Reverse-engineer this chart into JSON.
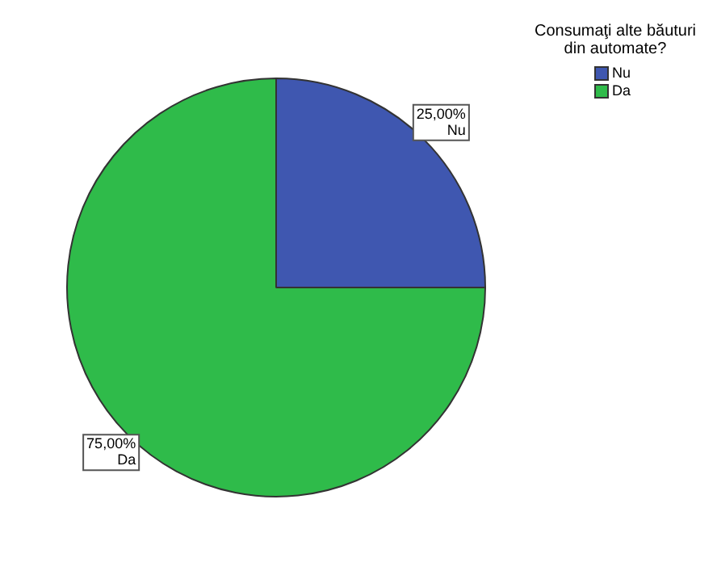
{
  "chart_data": {
    "type": "pie",
    "legend_title": "Consumaţi alte băuturi din automate?",
    "categories": [
      "Nu",
      "Da"
    ],
    "values": [
      25,
      75
    ],
    "value_labels": [
      "25,00%",
      "75,00%"
    ],
    "colors": [
      "#3f57b0",
      "#2fbb4a"
    ],
    "legend": "top right"
  }
}
